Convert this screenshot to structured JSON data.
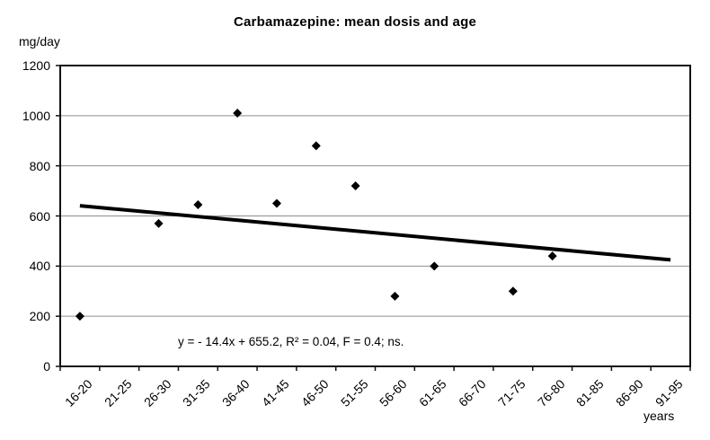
{
  "colors": {
    "background": "#ffffff",
    "axis": "#111111",
    "gridline": "#8e8e8e",
    "point": "#000000",
    "trendline": "#000000",
    "text": "#000000"
  },
  "chart_data": {
    "type": "scatter",
    "title": "Carbamazepine: mean dosis and age",
    "y_unit_label": "mg/day",
    "x_unit_label": "years",
    "categories": [
      "16-20",
      "21-25",
      "26-30",
      "31-35",
      "36-40",
      "41-45",
      "46-50",
      "51-55",
      "56-60",
      "61-65",
      "66-70",
      "71-75",
      "76-80",
      "81-85",
      "86-90",
      "91-95"
    ],
    "points": [
      {
        "category": "16-20",
        "value": 200
      },
      {
        "category": "26-30",
        "value": 570
      },
      {
        "category": "31-35",
        "value": 645
      },
      {
        "category": "36-40",
        "value": 1010
      },
      {
        "category": "41-45",
        "value": 650
      },
      {
        "category": "46-50",
        "value": 880
      },
      {
        "category": "51-55",
        "value": 720
      },
      {
        "category": "56-60",
        "value": 280
      },
      {
        "category": "61-65",
        "value": 400
      },
      {
        "category": "71-75",
        "value": 300
      },
      {
        "category": "76-80",
        "value": 440
      }
    ],
    "y_ticks": [
      0,
      200,
      400,
      600,
      800,
      1000,
      1200
    ],
    "ylim": [
      0,
      1200
    ],
    "grid": "horizontal-only",
    "legend": "none",
    "marker": "diamond",
    "trendline": {
      "type": "linear",
      "slope": -14.4,
      "intercept": 655.2,
      "x_domain_groups": [
        1,
        16
      ],
      "equation_label": "y = - 14.4x + 655.2, R² = 0.04, F = 0.4; ns."
    }
  }
}
